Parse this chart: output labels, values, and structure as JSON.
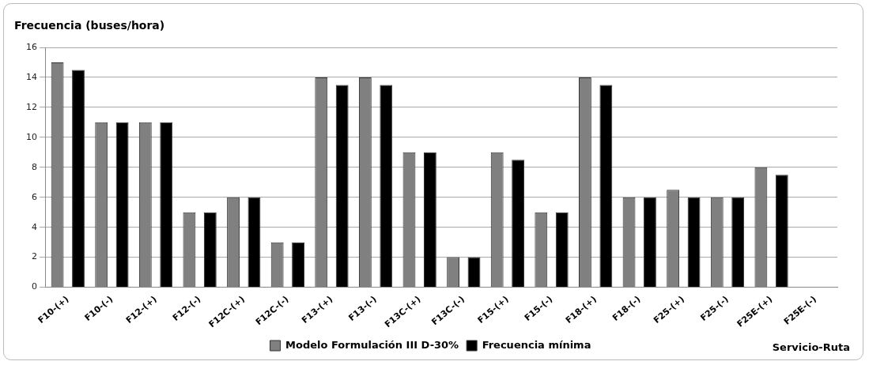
{
  "chart_data": {
    "type": "bar",
    "ylabel": "Frecuencia (buses/hora)",
    "xlabel": "Servicio-Ruta",
    "categories": [
      "F10-(+)",
      "F10-(-)",
      "F12-(+)",
      "F12-(-)",
      "F12C-(+)",
      "F12C-(-)",
      "F13-(+)",
      "F13-(-)",
      "F13C-(+)",
      "F13C-(-)",
      "F15-(+)",
      "F15-(-)",
      "F18-(+)",
      "F18-(-)",
      "F25-(+)",
      "F25-(-)",
      "F25E-(+)",
      "F25E-(-)"
    ],
    "series": [
      {
        "name": "Modelo Formulación III D-30%",
        "color": "#808080",
        "values": [
          15,
          11,
          11,
          5,
          6,
          3,
          14,
          14,
          9,
          2,
          9,
          5,
          14,
          6,
          6.5,
          6,
          8,
          null
        ]
      },
      {
        "name": "Frecuencia mínima",
        "color": "#000000",
        "values": [
          14.5,
          11,
          11,
          5,
          6,
          3,
          13.5,
          13.5,
          9,
          2,
          8.5,
          5,
          13.5,
          6,
          6,
          6,
          7.5,
          null
        ]
      }
    ],
    "ylim": [
      0,
      16
    ],
    "yticks": [
      0,
      2,
      4,
      6,
      8,
      10,
      12,
      14,
      16
    ],
    "grid": "y",
    "legend": "bottom"
  }
}
